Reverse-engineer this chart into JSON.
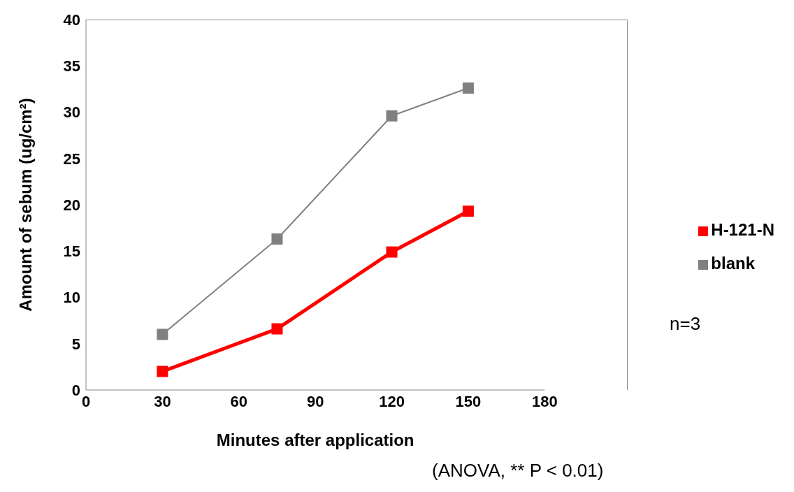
{
  "chart_data": {
    "type": "line",
    "xlabel": "Minutes after application",
    "ylabel": "Amount of sebum (ug/cm²)",
    "x": [
      30,
      75,
      120,
      150
    ],
    "series": [
      {
        "name": "blank",
        "color": "#808080",
        "values": [
          6.0,
          16.3,
          29.6,
          32.6
        ]
      },
      {
        "name": "H-121-N",
        "color": "#ff0000",
        "values": [
          2.0,
          6.6,
          14.9,
          19.3
        ]
      }
    ],
    "xlim": [
      0,
      180
    ],
    "xticks": [
      0,
      30,
      60,
      90,
      120,
      150,
      180
    ],
    "ylim": [
      0,
      40
    ],
    "yticks": [
      0,
      5,
      10,
      15,
      20,
      25,
      30,
      35,
      40
    ],
    "grid": false,
    "legend": "right",
    "marker": "square",
    "line_style": "solid",
    "annotations": [
      "n=3",
      "(ANOVA, ** P < 0.01)"
    ]
  }
}
